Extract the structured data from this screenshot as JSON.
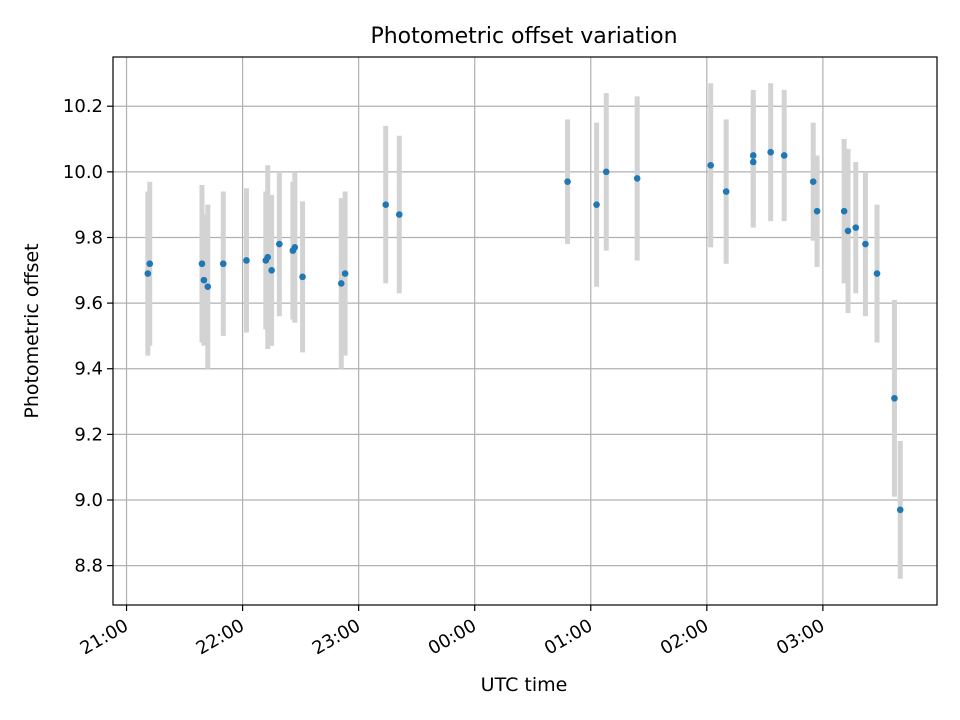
{
  "chart_data": {
    "type": "scatter",
    "title": "Photometric offset variation",
    "xlabel": "UTC time",
    "ylabel": "Photometric offset",
    "x_axis_kind": "time",
    "xlim": [
      "20:53",
      "03:59"
    ],
    "ylim": [
      8.68,
      10.35
    ],
    "grid": true,
    "x_ticks": [
      "21:00",
      "22:00",
      "23:00",
      "00:00",
      "01:00",
      "02:00",
      "03:00"
    ],
    "y_ticks": [
      "8.8",
      "9.0",
      "9.2",
      "9.4",
      "9.6",
      "9.8",
      "10.0",
      "10.2"
    ],
    "colors": {
      "point": "#1f77b4",
      "errorbar": "#d3d3d3",
      "grid": "#b0b0b0"
    },
    "points": [
      {
        "x": "21:11",
        "y": 9.69,
        "err": 0.25
      },
      {
        "x": "21:12",
        "y": 9.72,
        "err": 0.25
      },
      {
        "x": "21:39",
        "y": 9.72,
        "err": 0.24
      },
      {
        "x": "21:40",
        "y": 9.67,
        "err": 0.2
      },
      {
        "x": "21:42",
        "y": 9.65,
        "err": 0.25
      },
      {
        "x": "21:50",
        "y": 9.72,
        "err": 0.22
      },
      {
        "x": "22:02",
        "y": 9.73,
        "err": 0.22
      },
      {
        "x": "22:12",
        "y": 9.73,
        "err": 0.21
      },
      {
        "x": "22:13",
        "y": 9.74,
        "err": 0.28
      },
      {
        "x": "22:15",
        "y": 9.7,
        "err": 0.23
      },
      {
        "x": "22:19",
        "y": 9.78,
        "err": 0.22
      },
      {
        "x": "22:26",
        "y": 9.76,
        "err": 0.21
      },
      {
        "x": "22:27",
        "y": 9.77,
        "err": 0.23
      },
      {
        "x": "22:31",
        "y": 9.68,
        "err": 0.23
      },
      {
        "x": "22:51",
        "y": 9.66,
        "err": 0.26
      },
      {
        "x": "22:53",
        "y": 9.69,
        "err": 0.25
      },
      {
        "x": "23:14",
        "y": 9.9,
        "err": 0.24
      },
      {
        "x": "23:21",
        "y": 9.87,
        "err": 0.24
      },
      {
        "x": "00:48",
        "y": 9.97,
        "err": 0.19
      },
      {
        "x": "01:03",
        "y": 9.9,
        "err": 0.25
      },
      {
        "x": "01:08",
        "y": 10.0,
        "err": 0.24
      },
      {
        "x": "01:24",
        "y": 9.98,
        "err": 0.25
      },
      {
        "x": "02:02",
        "y": 10.02,
        "err": 0.25
      },
      {
        "x": "02:10",
        "y": 9.94,
        "err": 0.22
      },
      {
        "x": "02:24",
        "y": 10.03,
        "err": 0.2
      },
      {
        "x": "02:24",
        "y": 10.05,
        "err": 0.2
      },
      {
        "x": "02:33",
        "y": 10.06,
        "err": 0.21
      },
      {
        "x": "02:40",
        "y": 10.05,
        "err": 0.2
      },
      {
        "x": "02:55",
        "y": 9.97,
        "err": 0.18
      },
      {
        "x": "02:57",
        "y": 9.88,
        "err": 0.17
      },
      {
        "x": "03:11",
        "y": 9.88,
        "err": 0.22
      },
      {
        "x": "03:13",
        "y": 9.82,
        "err": 0.25
      },
      {
        "x": "03:17",
        "y": 9.83,
        "err": 0.2
      },
      {
        "x": "03:22",
        "y": 9.78,
        "err": 0.22
      },
      {
        "x": "03:28",
        "y": 9.69,
        "err": 0.21
      },
      {
        "x": "03:37",
        "y": 9.31,
        "err": 0.3
      },
      {
        "x": "03:40",
        "y": 8.97,
        "err": 0.21
      }
    ]
  }
}
